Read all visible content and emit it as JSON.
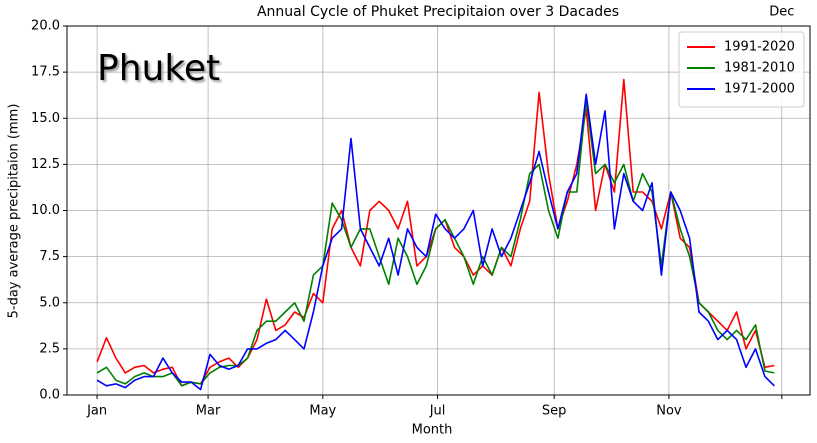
{
  "chart_data": {
    "type": "line",
    "title": "Annual Cycle of Phuket Precipitaion over 3 Dacades",
    "annotation": "Phuket",
    "x_label": "Month",
    "y_label": "5-day average precipitaion (mm)",
    "x": [
      1,
      6,
      11,
      16,
      21,
      26,
      31,
      36,
      41,
      46,
      51,
      56,
      61,
      66,
      71,
      76,
      81,
      86,
      91,
      96,
      101,
      106,
      111,
      116,
      121,
      126,
      131,
      136,
      141,
      146,
      151,
      156,
      161,
      166,
      171,
      176,
      181,
      186,
      191,
      196,
      201,
      206,
      211,
      216,
      221,
      226,
      231,
      236,
      241,
      246,
      251,
      256,
      261,
      266,
      271,
      276,
      281,
      286,
      291,
      296,
      301,
      306,
      311,
      316,
      321,
      326,
      331,
      336,
      341,
      346,
      351,
      356,
      361
    ],
    "series": [
      {
        "name": "1991-2020",
        "color": "#ff0000",
        "values": [
          1.8,
          3.1,
          2.0,
          1.2,
          1.5,
          1.6,
          1.2,
          1.4,
          1.5,
          0.5,
          0.7,
          0.6,
          1.5,
          1.8,
          2.0,
          1.5,
          2.0,
          3.0,
          5.2,
          3.5,
          3.8,
          4.5,
          4.2,
          5.5,
          5.0,
          9.0,
          10.0,
          8.0,
          7.0,
          10.0,
          10.5,
          10.0,
          9.0,
          10.5,
          7.0,
          7.5,
          9.0,
          9.5,
          8.0,
          7.5,
          6.5,
          7.0,
          6.5,
          8.0,
          7.0,
          9.0,
          10.5,
          16.4,
          12.0,
          9.0,
          10.5,
          12.5,
          15.5,
          10.0,
          12.5,
          11.0,
          17.1,
          11.0,
          11.0,
          10.5,
          9.0,
          11.0,
          8.5,
          8.0,
          5.0,
          4.5,
          4.0,
          3.5,
          4.5,
          2.5,
          3.5,
          1.5,
          1.6
        ]
      },
      {
        "name": "1981-2010",
        "color": "#008000",
        "values": [
          1.2,
          1.5,
          0.8,
          0.6,
          1.0,
          1.2,
          1.0,
          1.0,
          1.2,
          0.5,
          0.7,
          0.6,
          1.2,
          1.5,
          1.6,
          1.6,
          2.0,
          3.5,
          4.0,
          4.0,
          4.5,
          5.0,
          4.0,
          6.5,
          7.0,
          10.4,
          9.5,
          8.0,
          9.0,
          9.0,
          7.5,
          6.0,
          8.5,
          7.5,
          6.0,
          7.0,
          9.0,
          9.5,
          8.5,
          7.5,
          6.0,
          7.5,
          6.5,
          8.0,
          7.5,
          9.5,
          12.0,
          12.5,
          10.0,
          8.5,
          11.0,
          11.0,
          16.0,
          12.0,
          12.5,
          11.5,
          12.5,
          10.5,
          12.0,
          11.0,
          7.0,
          11.0,
          9.0,
          7.5,
          5.0,
          4.5,
          3.5,
          3.0,
          3.5,
          3.0,
          3.8,
          1.3,
          1.2
        ]
      },
      {
        "name": "1971-2000",
        "color": "#0000ff",
        "values": [
          0.8,
          0.5,
          0.6,
          0.4,
          0.8,
          1.0,
          1.0,
          2.0,
          1.2,
          0.7,
          0.7,
          0.3,
          2.2,
          1.6,
          1.4,
          1.6,
          2.5,
          2.5,
          2.8,
          3.0,
          3.5,
          3.0,
          2.5,
          4.5,
          7.0,
          8.5,
          9.0,
          13.9,
          9.0,
          8.0,
          7.0,
          8.5,
          6.5,
          9.0,
          8.0,
          7.5,
          9.8,
          9.0,
          8.5,
          9.0,
          10.0,
          7.0,
          9.0,
          7.5,
          8.5,
          10.0,
          11.5,
          13.2,
          11.0,
          9.0,
          11.0,
          12.0,
          16.3,
          12.5,
          15.4,
          9.0,
          12.0,
          10.5,
          10.0,
          11.5,
          6.5,
          11.0,
          10.0,
          8.5,
          4.5,
          4.0,
          3.0,
          3.5,
          3.0,
          1.5,
          2.5,
          1.0,
          0.5
        ]
      }
    ],
    "xlim": [
      -15,
      380
    ],
    "xticks": [
      {
        "value": 1,
        "label": "Jan"
      },
      {
        "value": 60,
        "label": "Mar"
      },
      {
        "value": 121,
        "label": "May"
      },
      {
        "value": 182,
        "label": "Jul"
      },
      {
        "value": 244,
        "label": "Sep"
      },
      {
        "value": 305,
        "label": "Nov"
      },
      {
        "value": 365,
        "label": "Dec"
      }
    ],
    "ylim": [
      0,
      20
    ],
    "yticks": [
      {
        "value": 0,
        "label": "0.0"
      },
      2.5,
      {
        "value": 5,
        "label": "5.0"
      },
      7.5,
      {
        "value": 10,
        "label": "10.0"
      },
      12.5,
      {
        "value": 15,
        "label": "15.0"
      },
      17.5,
      {
        "value": 20,
        "label": "20.0"
      }
    ],
    "grid": true,
    "legend": "upper right"
  }
}
